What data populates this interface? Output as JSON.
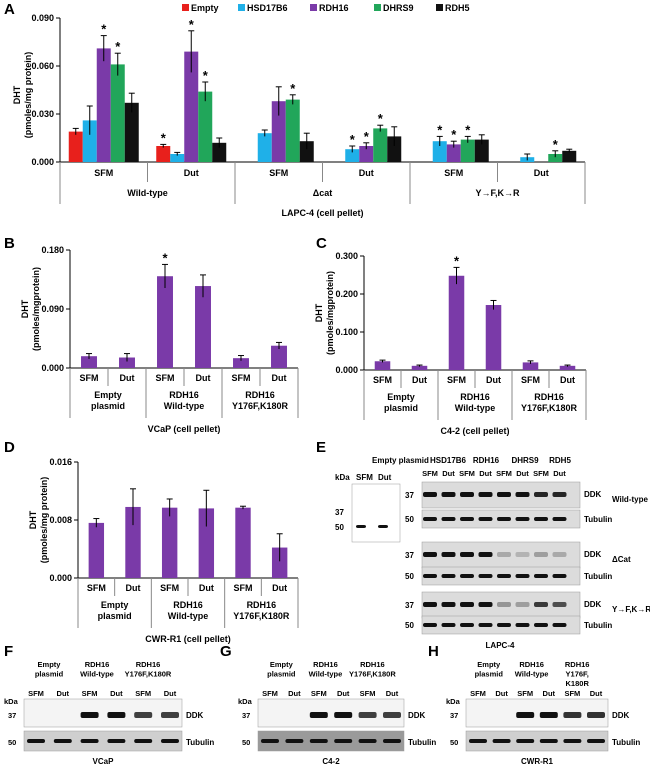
{
  "colors": {
    "Empty": "#e8201c",
    "HSD17B6": "#1fb0e8",
    "RDH16": "#7a3aa8",
    "DHRS9": "#21a65a",
    "RDH5": "#111111",
    "bar_single": "#7a3aa8"
  },
  "chart_data": [
    {
      "panel": "A",
      "type": "bar",
      "title": "",
      "ylabel": "DHT (pmoles/mg protein)",
      "xlabel": "LAPC-4 (cell pellet)",
      "ylim": [
        0,
        0.09
      ],
      "yticks": [
        "0.000",
        "0.030",
        "0.060",
        "0.090"
      ],
      "legend": [
        "Empty",
        "HSD17B6",
        "RDH16",
        "DHRS9",
        "RDH5"
      ],
      "legend_position": "top",
      "condition_labels": [
        "SFM",
        "Dut",
        "SFM",
        "Dut",
        "SFM",
        "Dut"
      ],
      "group_labels": [
        "Wild-type",
        "Δcat",
        "Y→F,K→R"
      ],
      "values": [
        [
          0.019,
          0.026,
          0.071,
          0.061,
          0.037
        ],
        [
          0.01,
          0.005,
          0.069,
          0.044,
          0.012
        ],
        [
          null,
          0.018,
          0.038,
          0.039,
          0.013
        ],
        [
          null,
          0.008,
          0.01,
          0.021,
          0.016
        ],
        [
          null,
          0.013,
          0.011,
          0.014,
          0.014
        ],
        [
          null,
          0.003,
          null,
          0.005,
          0.007
        ]
      ],
      "errors": [
        [
          0.002,
          0.009,
          0.008,
          0.007,
          0.006
        ],
        [
          0.001,
          0.001,
          0.013,
          0.006,
          0.003
        ],
        [
          null,
          0.002,
          0.009,
          0.003,
          0.005
        ],
        [
          null,
          0.002,
          0.002,
          0.002,
          0.006
        ],
        [
          null,
          0.003,
          0.002,
          0.002,
          0.003
        ],
        [
          null,
          0.002,
          null,
          0.002,
          0.001
        ]
      ],
      "significance": [
        [
          false,
          false,
          true,
          true,
          false
        ],
        [
          true,
          false,
          true,
          true,
          false
        ],
        [
          false,
          false,
          false,
          true,
          false
        ],
        [
          false,
          true,
          true,
          true,
          false
        ],
        [
          false,
          true,
          true,
          true,
          false
        ],
        [
          false,
          false,
          true,
          true,
          false
        ]
      ],
      "significance_marker": "*"
    },
    {
      "panel": "B",
      "type": "bar",
      "ylabel": "DHT (pmoles/mgprotein)",
      "xlabel": "VCaP (cell pellet)",
      "ylim": [
        0,
        0.18
      ],
      "yticks": [
        "0.000",
        "0.090",
        "0.180"
      ],
      "condition_labels": [
        "SFM",
        "Dut",
        "SFM",
        "Dut",
        "SFM",
        "Dut"
      ],
      "group_labels": [
        "Empty\nplasmid",
        "RDH16\nWild-type",
        "RDH16\nY176F,K180R"
      ],
      "values": [
        0.018,
        0.016,
        0.14,
        0.125,
        0.015,
        0.034
      ],
      "errors": [
        0.004,
        0.006,
        0.018,
        0.017,
        0.004,
        0.005
      ],
      "significance": [
        false,
        false,
        true,
        false,
        false,
        false
      ]
    },
    {
      "panel": "C",
      "type": "bar",
      "ylabel": "DHT (pmoles/mgprotein)",
      "xlabel": "C4-2 (cell pellet)",
      "ylim": [
        0,
        0.3
      ],
      "yticks": [
        "0.000",
        "0.100",
        "0.200",
        "0.300"
      ],
      "condition_labels": [
        "SFM",
        "Dut",
        "SFM",
        "Dut",
        "SFM",
        "Dut"
      ],
      "group_labels": [
        "Empty\nplasmid",
        "RDH16\nWild-type",
        "RDH16\nY176F,K180R"
      ],
      "values": [
        0.023,
        0.011,
        0.248,
        0.171,
        0.02,
        0.011
      ],
      "errors": [
        0.003,
        0.002,
        0.022,
        0.012,
        0.004,
        0.002
      ],
      "significance": [
        false,
        false,
        true,
        false,
        false,
        false
      ]
    },
    {
      "panel": "D",
      "type": "bar",
      "ylabel": "DHT (pmoles/mg protein)",
      "xlabel": "CWR-R1 (cell pellet)",
      "ylim": [
        0,
        0.016
      ],
      "yticks": [
        "0.000",
        "0.008",
        "0.016"
      ],
      "condition_labels": [
        "SFM",
        "Dut",
        "SFM",
        "Dut",
        "SFM",
        "Dut"
      ],
      "group_labels": [
        "Empty\nplasmid",
        "RDH16\nWild-type",
        "RDH16\nY176F,K180R"
      ],
      "values": [
        0.0076,
        0.0098,
        0.0097,
        0.0096,
        0.0097,
        0.0042
      ],
      "errors": [
        0.0006,
        0.0025,
        0.0012,
        0.0025,
        0.0002,
        0.0019
      ],
      "significance": [
        false,
        false,
        false,
        false,
        false,
        false
      ]
    }
  ],
  "blots": {
    "E": {
      "title": "LAPC-4",
      "left_header": "Empty  plasmid",
      "lanes_header": [
        "HSD17B6",
        "RDH16",
        "DHRS9",
        "RDH5"
      ],
      "sfm": "SFM",
      "dut": "Dut",
      "kda": "kDa",
      "mw": [
        "37",
        "50"
      ],
      "rows": [
        "DDK",
        "Tubulin"
      ],
      "conditions": [
        "Wild-type",
        "ΔCat",
        "Y→F,K→R"
      ]
    },
    "F": {
      "title": "VCaP",
      "groups": [
        "Empty\nplasmid",
        "RDH16\nWild-type",
        "RDH16\nY176F,K180R"
      ],
      "sfm": "SFM",
      "dut": "Dut",
      "kda": "kDa",
      "mw": [
        "37",
        "50"
      ],
      "rows": [
        "DDK",
        "Tubulin"
      ]
    },
    "G": {
      "title": "C4-2",
      "groups": [
        "Empty\nplasmid",
        "RDH16\nWild-type",
        "RDH16\nY176F,K180R"
      ],
      "sfm": "SFM",
      "dut": "Dut",
      "kda": "kDa",
      "mw": [
        "37",
        "50"
      ],
      "rows": [
        "DDK",
        "Tubulin"
      ]
    },
    "H": {
      "title": "CWR-R1",
      "groups": [
        "Empty\nplasmid",
        "RDH16\nWild-type",
        "RDH16\nY176F,\nK180R"
      ],
      "sfm": "SFM",
      "dut": "Dut",
      "kda": "kDa",
      "mw": [
        "37",
        "50"
      ],
      "rows": [
        "DDK",
        "Tubulin"
      ]
    }
  },
  "panel_letters": [
    "A",
    "B",
    "C",
    "D",
    "E",
    "F",
    "G",
    "H"
  ]
}
